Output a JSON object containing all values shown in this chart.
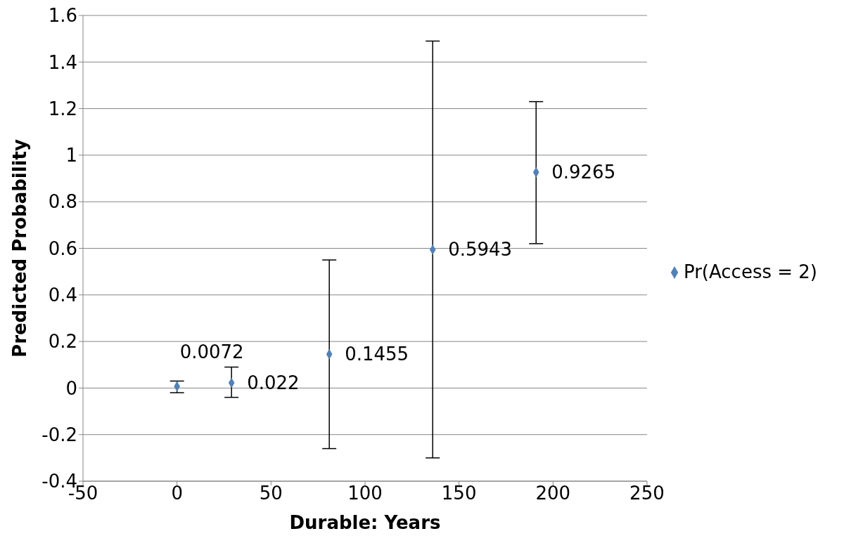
{
  "chart_data": {
    "type": "scatter",
    "xlabel": "Durable: Years",
    "ylabel": "Predicted Probability",
    "x": [
      0,
      29,
      81,
      136,
      191
    ],
    "series": [
      {
        "name": "Pr(Access = 2)",
        "color": "#4f81bd",
        "values": [
          0.0072,
          0.022,
          0.1455,
          0.5943,
          0.9265
        ],
        "errors": [
          [
            -0.02,
            0.03
          ],
          [
            -0.04,
            0.09
          ],
          [
            -0.26,
            0.55
          ],
          [
            -0.3,
            1.49
          ],
          [
            0.62,
            1.23
          ]
        ]
      }
    ],
    "xlim": [
      -50,
      250
    ],
    "xticks": [
      -50,
      0,
      50,
      100,
      150,
      200,
      250
    ],
    "ylim": [
      -0.4,
      1.6
    ],
    "yticks": [
      -0.4,
      -0.2,
      0,
      0.2,
      0.4,
      0.6,
      0.8,
      1,
      1.2,
      1.4,
      1.6
    ],
    "grid": "y",
    "legend": "right",
    "marker": "diamond",
    "data_labels": true
  }
}
